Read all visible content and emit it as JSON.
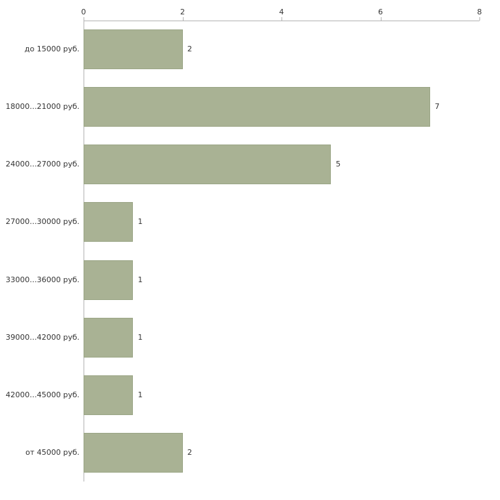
{
  "chart_data": {
    "type": "bar",
    "orientation": "horizontal",
    "title": "",
    "xlabel": "",
    "ylabel": "",
    "categories": [
      "до 15000 руб.",
      "18000...21000 руб.",
      "24000...27000 руб.",
      "27000...30000 руб.",
      "33000...36000 руб.",
      "39000...42000 руб.",
      "42000...45000 руб.",
      "от 45000 руб."
    ],
    "values": [
      2,
      7,
      5,
      1,
      1,
      1,
      1,
      2
    ],
    "xticks": [
      0,
      2,
      4,
      6,
      8
    ],
    "xlim": [
      0,
      8
    ],
    "grid": false,
    "legend": false,
    "bar_color": "#a9b294",
    "bar_border_color": "#9aa585",
    "axis_color": "#b3b3b3",
    "text_color": "#333333",
    "background_color": "#ffffff"
  }
}
